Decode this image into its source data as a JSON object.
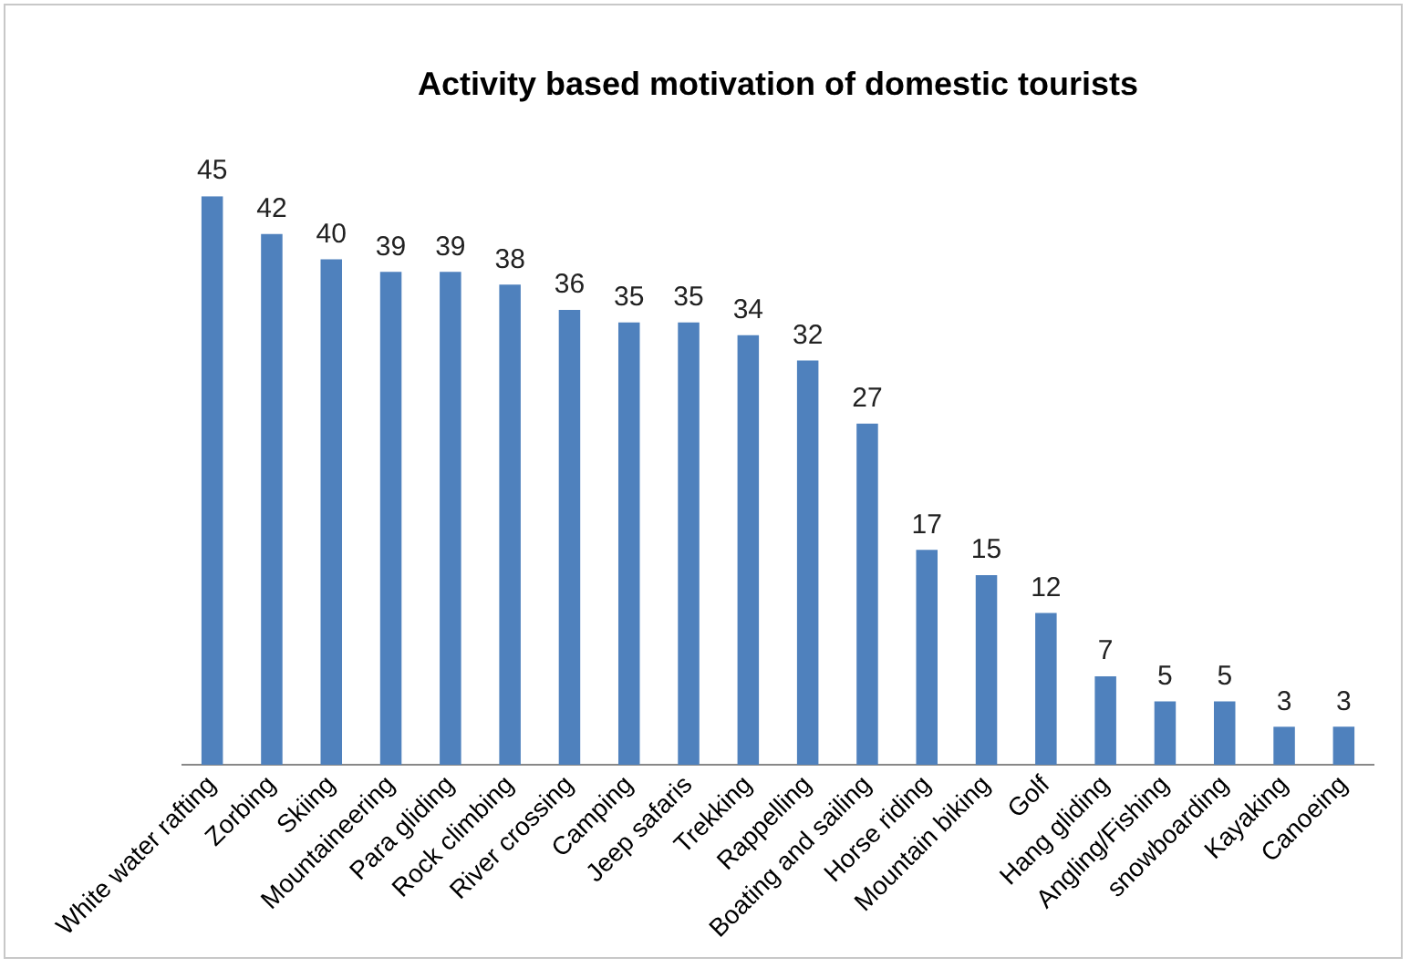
{
  "chart_data": {
    "type": "bar",
    "title": "Activity based motivation of domestic tourists",
    "categories": [
      "White water rafting",
      "Zorbing",
      "Skiing",
      "Mountaineering",
      "Para gliding",
      "Rock climbing",
      "River crossing",
      "Camping",
      "Jeep safaris",
      "Trekking",
      "Rappelling",
      "Boating and sailing",
      "Horse riding",
      "Mountain biking",
      "Golf",
      "Hang gliding",
      "Angling/Fishing",
      "snowboarding",
      "Kayaking",
      "Canoeing"
    ],
    "values": [
      45,
      42,
      40,
      39,
      39,
      38,
      36,
      35,
      35,
      34,
      32,
      27,
      17,
      15,
      12,
      7,
      5,
      5,
      3,
      3
    ],
    "color": "#4f81bd",
    "ylim": [
      0,
      45
    ],
    "tick_labels": "x",
    "data_labels": true,
    "grid": false,
    "legend": false
  }
}
